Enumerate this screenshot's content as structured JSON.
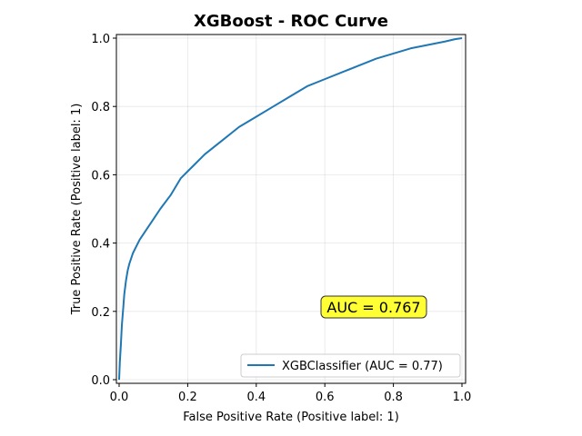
{
  "chart_data": {
    "type": "line",
    "title": "XGBoost - ROC Curve",
    "xlabel": "False Positive Rate (Positive label: 1)",
    "ylabel": "True Positive Rate (Positive label: 1)",
    "xlim": [
      0,
      1
    ],
    "ylim": [
      0,
      1
    ],
    "x_ticks": [
      0.0,
      0.2,
      0.4,
      0.6,
      0.8,
      1.0
    ],
    "y_ticks": [
      0.0,
      0.2,
      0.4,
      0.6,
      0.8,
      1.0
    ],
    "x_tick_labels": [
      "0.0",
      "0.2",
      "0.4",
      "0.6",
      "0.8",
      "1.0"
    ],
    "y_tick_labels": [
      "0.0",
      "0.2",
      "0.4",
      "0.6",
      "0.8",
      "1.0"
    ],
    "grid": true,
    "legend_position": "lower-right",
    "annotation": {
      "text": "AUC = 0.767",
      "x": 0.6,
      "y": 0.2,
      "background": "#ffff33"
    },
    "series": [
      {
        "name": "XGBClassifier (AUC = 0.77)",
        "color": "#1f77b4",
        "x": [
          0.0,
          0.002,
          0.005,
          0.008,
          0.012,
          0.015,
          0.02,
          0.025,
          0.03,
          0.04,
          0.05,
          0.06,
          0.08,
          0.1,
          0.12,
          0.15,
          0.18,
          0.2,
          0.22,
          0.25,
          0.3,
          0.35,
          0.4,
          0.45,
          0.5,
          0.55,
          0.6,
          0.65,
          0.7,
          0.75,
          0.8,
          0.85,
          0.9,
          0.95,
          0.98,
          1.0
        ],
        "y": [
          0.0,
          0.05,
          0.1,
          0.16,
          0.21,
          0.25,
          0.29,
          0.32,
          0.34,
          0.37,
          0.39,
          0.41,
          0.44,
          0.47,
          0.5,
          0.54,
          0.59,
          0.61,
          0.63,
          0.66,
          0.7,
          0.74,
          0.77,
          0.8,
          0.83,
          0.86,
          0.88,
          0.9,
          0.92,
          0.94,
          0.955,
          0.97,
          0.98,
          0.99,
          0.997,
          1.0
        ]
      }
    ]
  }
}
